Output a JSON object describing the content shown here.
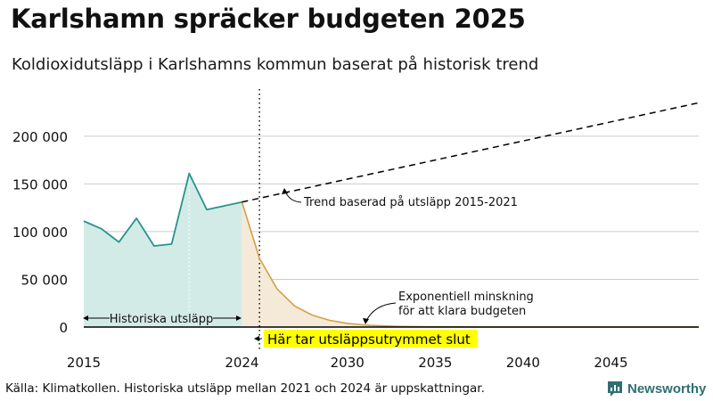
{
  "header": {
    "title": "Karlshamn spräcker budgeten 2025",
    "subtitle": "Koldioxidutsläpp i Karlshamns kommun baserat på historisk trend"
  },
  "footer": {
    "source": "Källa: Klimatkollen. Historiska utsläpp mellan 2021 och 2024 är uppskattningar.",
    "brand": "Newsworthy"
  },
  "colors": {
    "historical_line": "#27948a",
    "historical_fill": "#d3ebe7",
    "budget_line": "#d4a043",
    "budget_fill": "#f5ead8",
    "trend_line": "#000000",
    "highlight": "#ffff00",
    "grid": "#cccccc"
  },
  "chart_data": {
    "type": "line",
    "xlim": [
      2015,
      2050
    ],
    "ylim": [
      0,
      240000
    ],
    "x_ticks": [
      2015,
      2024,
      2030,
      2035,
      2040,
      2045
    ],
    "x_tick_labels": [
      "2015",
      "2024",
      "2030",
      "2035",
      "2040",
      "2045"
    ],
    "y_ticks": [
      0,
      50000,
      100000,
      150000,
      200000
    ],
    "y_tick_labels": [
      "0",
      "50 000",
      "100 000",
      "150 000",
      "200 000"
    ],
    "grid": "horizontal",
    "series": [
      {
        "style": "solid-area",
        "x": [
          2015,
          2016,
          2017,
          2018,
          2019,
          2020,
          2021,
          2022,
          2024
        ],
        "y": [
          111000,
          103000,
          89000,
          114000,
          85000,
          87000,
          161000,
          123000,
          131000
        ]
      },
      {
        "style": "solid-area",
        "x": [
          2024,
          2025,
          2026,
          2027,
          2028,
          2029,
          2030,
          2031,
          2032,
          2033,
          2035,
          2040,
          2045,
          2050
        ],
        "y": [
          131000,
          72000,
          40000,
          22000,
          12500,
          7000,
          3800,
          2100,
          1200,
          600,
          200,
          0,
          0,
          0
        ]
      },
      {
        "style": "dashed",
        "x": [
          2024,
          2050
        ],
        "y": [
          131000,
          235000
        ]
      }
    ],
    "vertical_marker": {
      "x": 2025,
      "style": "dotted"
    },
    "annotations": {
      "historical": "Historiska utsläpp",
      "trend": "Trend baserad på utsläpp 2015-2021",
      "budget_line1": "Exponentiell minskning",
      "budget_line2": "för att klara budgeten",
      "budget_end": "Här tar utsläppsutrymmet slut"
    }
  }
}
